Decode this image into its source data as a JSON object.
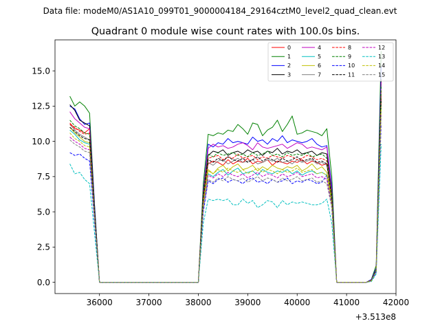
{
  "chart_data": {
    "type": "line",
    "suptitle": "Data file: modeM0/AS1A10_099T01_9000004184_29164cztM0_level2_quad_clean.evt",
    "title": "Quadrant 0 module wise count rates with 100.0s bins.",
    "xlabel": "",
    "ylabel": "",
    "x_offset_label": "+3.513e8",
    "xlim": [
      35100,
      42000
    ],
    "ylim": [
      -0.8,
      17.2
    ],
    "xticks": [
      36000,
      37000,
      38000,
      39000,
      40000,
      41000,
      42000
    ],
    "xtick_labels": [
      "36000",
      "37000",
      "38000",
      "39000",
      "40000",
      "41000",
      "42000"
    ],
    "yticks": [
      0.0,
      2.5,
      5.0,
      7.5,
      10.0,
      12.5,
      15.0
    ],
    "ytick_labels": [
      "0.0",
      "2.5",
      "5.0",
      "7.5",
      "10.0",
      "12.5",
      "15.0"
    ],
    "grid": false,
    "legend_position": "top-right",
    "x": [
      35400,
      35500,
      35600,
      35700,
      35800,
      35900,
      36000,
      36100,
      36200,
      36300,
      36400,
      36500,
      36600,
      36700,
      36800,
      36900,
      37000,
      37100,
      37200,
      37300,
      37400,
      37500,
      37600,
      37700,
      37800,
      37900,
      38000,
      38100,
      38200,
      38300,
      38400,
      38500,
      38600,
      38700,
      38800,
      38900,
      39000,
      39100,
      39200,
      39300,
      39400,
      39500,
      39600,
      39700,
      39800,
      39900,
      40000,
      40100,
      40200,
      40300,
      40400,
      40500,
      40600,
      40700,
      40800,
      40900,
      41000,
      41100,
      41200,
      41300,
      41400,
      41500,
      41600,
      41700
    ],
    "series": [
      {
        "name": "0",
        "color": "#ff0000",
        "dash": "solid",
        "active": [
          11.3,
          10.9,
          10.8,
          10.6,
          10.9,
          5.0
        ],
        "plateau": [
          6.0,
          8.4,
          8.6,
          8.5,
          8.3,
          8.7,
          8.4,
          8.6,
          8.5,
          8.8,
          8.4,
          8.6,
          8.5,
          8.7,
          8.3,
          8.6,
          8.5,
          8.4,
          8.6,
          8.5,
          8.7,
          8.4,
          8.6,
          8.5,
          8.3,
          8.4,
          6.0
        ],
        "tail": [
          0.15,
          0.8,
          13.2
        ]
      },
      {
        "name": "1",
        "color": "#008000",
        "dash": "solid",
        "active": [
          13.2,
          12.5,
          12.8,
          12.5,
          12.0,
          5.5
        ],
        "plateau": [
          7.0,
          10.5,
          10.4,
          10.6,
          10.5,
          10.8,
          10.7,
          11.2,
          10.9,
          10.5,
          11.3,
          11.2,
          10.4,
          10.8,
          11.0,
          11.5,
          10.7,
          11.2,
          11.8,
          10.5,
          10.6,
          10.8,
          10.7,
          10.6,
          10.4,
          10.9,
          7.5
        ],
        "tail": [
          0.2,
          1.2,
          16.4
        ]
      },
      {
        "name": "2",
        "color": "#0000ff",
        "dash": "solid",
        "active": [
          12.5,
          12.3,
          11.6,
          11.2,
          11.3,
          5.5
        ],
        "plateau": [
          6.5,
          9.8,
          9.6,
          9.9,
          9.8,
          10.2,
          9.9,
          10.0,
          9.9,
          9.8,
          10.3,
          10.0,
          10.1,
          9.8,
          10.2,
          10.0,
          10.4,
          9.9,
          10.1,
          10.0,
          9.9,
          10.0,
          10.2,
          9.8,
          9.6,
          9.7,
          6.8
        ],
        "tail": [
          0.2,
          1.0,
          15.3
        ]
      },
      {
        "name": "3",
        "color": "#000000",
        "dash": "solid",
        "active": [
          12.6,
          12.2,
          11.5,
          11.3,
          11.1,
          5.3
        ],
        "plateau": [
          6.2,
          9.0,
          9.3,
          9.2,
          9.4,
          9.0,
          9.2,
          9.3,
          9.1,
          9.4,
          9.2,
          9.3,
          9.0,
          9.3,
          9.2,
          9.5,
          9.1,
          9.3,
          9.2,
          9.4,
          9.1,
          9.2,
          9.3,
          9.0,
          9.2,
          9.1,
          6.4
        ],
        "tail": [
          0.15,
          0.9,
          14.4
        ]
      },
      {
        "name": "4",
        "color": "#bf00bf",
        "dash": "solid",
        "active": [
          12.1,
          11.6,
          11.3,
          11.0,
          10.9,
          5.1
        ],
        "plateau": [
          6.4,
          9.5,
          9.8,
          9.6,
          9.7,
          9.5,
          9.6,
          9.8,
          9.9,
          9.7,
          9.4,
          9.9,
          9.6,
          9.5,
          9.6,
          9.7,
          9.8,
          9.5,
          9.7,
          9.9,
          9.8,
          9.5,
          9.6,
          9.5,
          9.4,
          9.6,
          6.5
        ],
        "tail": [
          0.15,
          0.9,
          14.2
        ]
      },
      {
        "name": "5",
        "color": "#00bfbf",
        "dash": "solid",
        "active": [
          10.8,
          10.5,
          10.1,
          9.9,
          9.8,
          4.8
        ],
        "plateau": [
          5.6,
          7.7,
          7.5,
          7.8,
          8.0,
          7.6,
          7.9,
          8.1,
          7.7,
          7.8,
          7.9,
          7.6,
          8.0,
          7.8,
          7.7,
          7.9,
          7.8,
          8.0,
          7.7,
          7.9,
          7.6,
          7.8,
          7.9,
          7.7,
          7.8,
          7.6,
          5.7
        ],
        "tail": [
          0.1,
          0.8,
          12.4
        ]
      },
      {
        "name": "6",
        "color": "#bfbf00",
        "dash": "solid",
        "active": [
          11.0,
          10.6,
          10.3,
          10.0,
          9.9,
          4.9
        ],
        "plateau": [
          5.8,
          8.0,
          7.7,
          8.1,
          8.3,
          7.9,
          8.2,
          8.4,
          8.0,
          8.1,
          8.3,
          7.9,
          8.2,
          8.0,
          8.3,
          8.1,
          8.0,
          8.2,
          8.1,
          8.3,
          7.9,
          8.1,
          8.4,
          8.0,
          8.2,
          7.8,
          5.9
        ],
        "tail": [
          0.1,
          0.8,
          12.8
        ]
      },
      {
        "name": "7",
        "color": "#808080",
        "dash": "solid",
        "active": [
          11.2,
          10.8,
          10.5,
          10.3,
          10.1,
          5.0
        ],
        "plateau": [
          6.0,
          8.5,
          8.3,
          8.6,
          8.7,
          8.4,
          8.6,
          8.8,
          8.5,
          8.6,
          8.7,
          8.4,
          8.5,
          8.7,
          8.6,
          8.8,
          8.5,
          8.6,
          8.4,
          8.7,
          8.5,
          8.6,
          8.7,
          8.4,
          8.5,
          8.3,
          6.1
        ],
        "tail": [
          0.1,
          0.9,
          13.4
        ]
      },
      {
        "name": "8",
        "color": "#ff0000",
        "dash": "dashed",
        "active": [
          11.2,
          11.0,
          10.7,
          10.5,
          10.6,
          5.0
        ],
        "plateau": [
          6.1,
          8.8,
          8.9,
          9.0,
          8.7,
          8.9,
          8.8,
          9.1,
          8.8,
          8.9,
          9.0,
          8.7,
          8.9,
          8.8,
          9.0,
          8.9,
          8.8,
          9.0,
          8.9,
          8.7,
          8.8,
          9.0,
          8.9,
          8.7,
          8.8,
          8.6,
          6.2
        ],
        "tail": [
          0.15,
          0.9,
          13.6
        ]
      },
      {
        "name": "9",
        "color": "#008000",
        "dash": "dashed",
        "active": [
          11.5,
          11.1,
          10.9,
          10.6,
          10.5,
          5.1
        ],
        "plateau": [
          6.3,
          9.1,
          8.9,
          9.2,
          9.0,
          9.1,
          9.2,
          9.0,
          9.1,
          8.9,
          9.2,
          9.0,
          9.1,
          9.3,
          9.0,
          9.1,
          8.9,
          9.2,
          9.0,
          9.1,
          9.0,
          9.2,
          8.9,
          9.0,
          9.1,
          8.8,
          6.3
        ],
        "tail": [
          0.15,
          0.9,
          14.0
        ]
      },
      {
        "name": "10",
        "color": "#0000ff",
        "dash": "dashed",
        "active": [
          9.2,
          9.0,
          9.1,
          8.8,
          8.6,
          4.3
        ],
        "plateau": [
          5.0,
          7.2,
          7.0,
          7.3,
          7.4,
          7.1,
          7.3,
          7.2,
          7.0,
          7.3,
          7.4,
          7.1,
          7.2,
          7.0,
          7.3,
          7.1,
          7.2,
          7.4,
          7.0,
          7.2,
          7.1,
          7.3,
          7.2,
          7.0,
          7.1,
          7.6,
          5.3
        ],
        "tail": [
          0.1,
          0.7,
          11.2
        ]
      },
      {
        "name": "11",
        "color": "#000000",
        "dash": "dashed",
        "active": [
          11.0,
          10.7,
          10.4,
          10.2,
          10.1,
          5.0
        ],
        "plateau": [
          6.0,
          8.7,
          8.5,
          8.8,
          8.6,
          8.9,
          8.7,
          8.6,
          8.8,
          8.5,
          8.7,
          8.9,
          8.6,
          8.8,
          8.7,
          8.5,
          8.8,
          8.6,
          8.7,
          8.9,
          8.6,
          8.7,
          8.8,
          8.5,
          8.6,
          8.4,
          6.0
        ],
        "tail": [
          0.1,
          0.9,
          13.0
        ]
      },
      {
        "name": "12",
        "color": "#bf00bf",
        "dash": "dashed",
        "active": [
          10.3,
          10.0,
          9.8,
          9.5,
          9.4,
          4.6
        ],
        "plateau": [
          5.4,
          7.6,
          7.4,
          7.7,
          7.5,
          7.8,
          7.6,
          7.5,
          7.7,
          7.4,
          7.6,
          7.8,
          7.5,
          7.7,
          7.6,
          7.4,
          7.7,
          7.5,
          7.6,
          7.8,
          7.5,
          7.6,
          7.7,
          7.4,
          7.5,
          7.3,
          5.5
        ],
        "tail": [
          0.1,
          0.8,
          12.0
        ]
      },
      {
        "name": "13",
        "color": "#00bfbf",
        "dash": "dashed",
        "active": [
          8.4,
          7.7,
          7.8,
          7.3,
          7.0,
          3.5
        ],
        "plateau": [
          4.2,
          5.9,
          5.8,
          5.9,
          5.8,
          5.9,
          5.5,
          5.5,
          5.9,
          5.6,
          5.8,
          5.3,
          5.5,
          5.8,
          5.7,
          5.3,
          5.8,
          5.5,
          5.7,
          5.6,
          5.7,
          5.6,
          5.5,
          5.5,
          5.6,
          5.9,
          4.2
        ],
        "tail": [
          0.05,
          0.6,
          9.8
        ]
      },
      {
        "name": "14",
        "color": "#bfbf00",
        "dash": "dashed",
        "active": [
          10.6,
          10.2,
          10.0,
          9.7,
          9.6,
          4.7
        ],
        "plateau": [
          5.6,
          7.9,
          7.7,
          8.0,
          7.8,
          8.1,
          7.9,
          7.8,
          8.0,
          7.7,
          7.9,
          8.1,
          7.8,
          8.0,
          7.9,
          7.7,
          8.0,
          7.8,
          7.9,
          8.1,
          7.8,
          7.9,
          8.0,
          7.7,
          7.8,
          7.6,
          5.6
        ],
        "tail": [
          0.1,
          0.8,
          12.4
        ]
      },
      {
        "name": "15",
        "color": "#808080",
        "dash": "dashed",
        "active": [
          10.1,
          9.8,
          9.6,
          9.3,
          9.2,
          4.5
        ],
        "plateau": [
          5.2,
          7.3,
          7.1,
          7.4,
          7.2,
          7.5,
          7.3,
          7.2,
          7.4,
          7.1,
          7.3,
          7.5,
          7.2,
          7.4,
          7.3,
          7.1,
          7.4,
          7.2,
          7.3,
          7.5,
          7.2,
          7.3,
          7.4,
          7.1,
          7.2,
          7.0,
          5.3
        ],
        "tail": [
          0.1,
          0.8,
          11.8
        ]
      }
    ]
  }
}
